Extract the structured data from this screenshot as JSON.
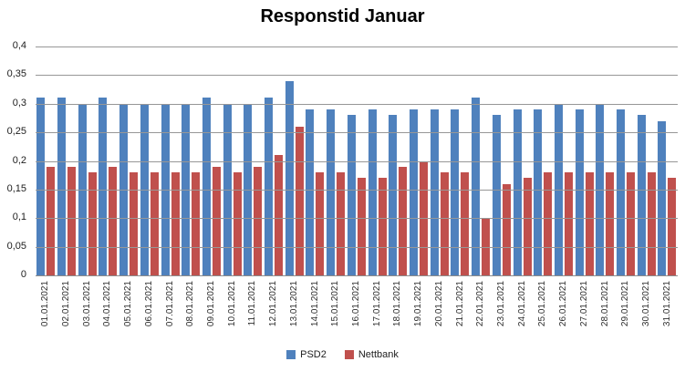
{
  "title": "Responstid Januar",
  "colors": {
    "psd2": "#4F81BD",
    "nettbank": "#C0504D",
    "gridline": "#979797",
    "text": "#1d1d1d"
  },
  "chart_data": {
    "type": "bar",
    "title": "Responstid Januar",
    "categories": [
      "01.01.2021",
      "02.01.2021",
      "03.01.2021",
      "04.01.2021",
      "05.01.2021",
      "06.01.2021",
      "07.01.2021",
      "08.01.2021",
      "09.01.2021",
      "10.01.2021",
      "11.01.2021",
      "12.01.2021",
      "13.01.2021",
      "14.01.2021",
      "15.01.2021",
      "16.01.2021",
      "17.01.2021",
      "18.01.2021",
      "19.01.2021",
      "20.01.2021",
      "21.01.2021",
      "22.01.2021",
      "23.01.2021",
      "24.01.2021",
      "25.01.2021",
      "26.01.2021",
      "27.01.2021",
      "28.01.2021",
      "29.01.2021",
      "30.01.2021",
      "31.01.2021"
    ],
    "series": [
      {
        "name": "PSD2",
        "color": "#4F81BD",
        "values": [
          0.31,
          0.31,
          0.3,
          0.31,
          0.3,
          0.3,
          0.3,
          0.3,
          0.31,
          0.3,
          0.3,
          0.31,
          0.34,
          0.29,
          0.29,
          0.28,
          0.29,
          0.28,
          0.29,
          0.29,
          0.29,
          0.31,
          0.28,
          0.29,
          0.29,
          0.3,
          0.29,
          0.3,
          0.29,
          0.28,
          0.27
        ]
      },
      {
        "name": "Nettbank",
        "color": "#C0504D",
        "values": [
          0.19,
          0.19,
          0.18,
          0.19,
          0.18,
          0.18,
          0.18,
          0.18,
          0.19,
          0.18,
          0.19,
          0.21,
          0.26,
          0.18,
          0.18,
          0.17,
          0.17,
          0.19,
          0.2,
          0.18,
          0.18,
          0.1,
          0.16,
          0.17,
          0.18,
          0.18,
          0.18,
          0.18,
          0.18,
          0.18,
          0.17
        ]
      }
    ],
    "xlabel": "",
    "ylabel": "",
    "ylim": [
      0,
      0.4
    ],
    "ytick_step": 0.05,
    "ytick_labels": [
      "0",
      "0,05",
      "0,1",
      "0,15",
      "0,2",
      "0,25",
      "0,3",
      "0,35",
      "0,4"
    ],
    "grid": true,
    "legend_position": "bottom"
  },
  "legend": {
    "items": [
      {
        "label": "PSD2"
      },
      {
        "label": "Nettbank"
      }
    ]
  }
}
